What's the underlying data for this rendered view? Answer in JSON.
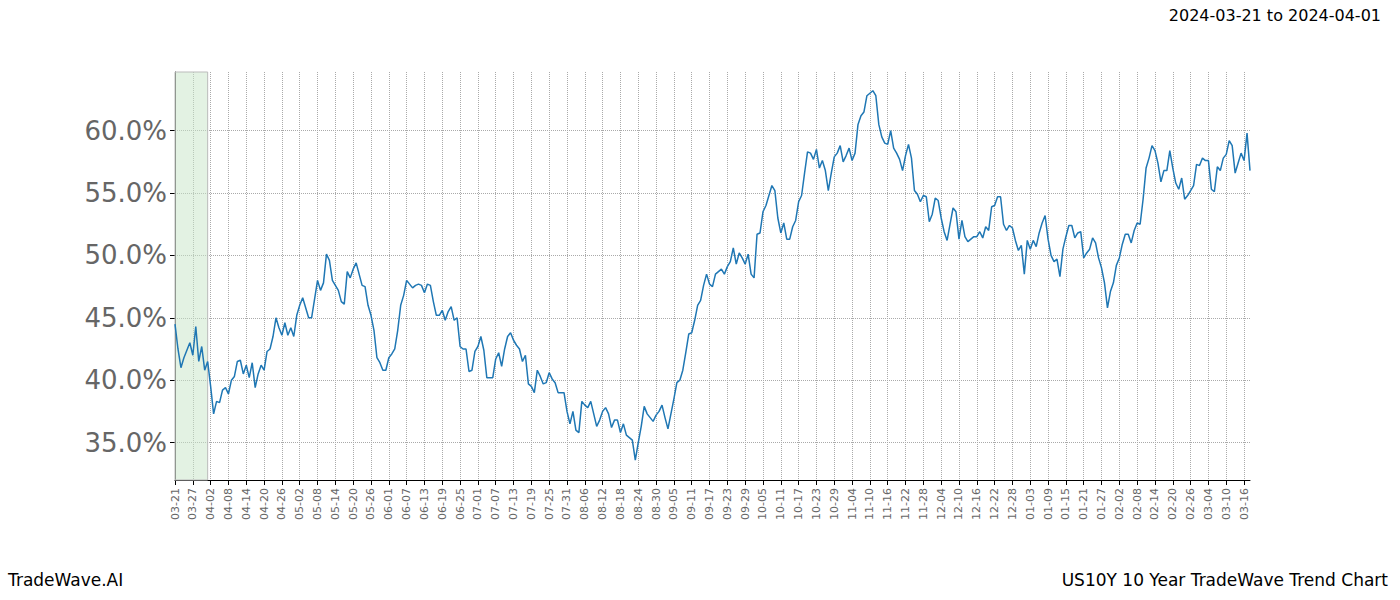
{
  "chart_data": {
    "type": "line",
    "title": "2024-03-21 to 2024-04-01",
    "source": "TradeWave.AI",
    "caption": "US10Y 10 Year TradeWave Trend Chart",
    "categories": [
      "03-21",
      null,
      null,
      null,
      null,
      null,
      "03-27",
      null,
      null,
      null,
      null,
      null,
      "04-02",
      null,
      null,
      null,
      null,
      null,
      "04-08",
      null,
      null,
      null,
      null,
      null,
      "04-14",
      null,
      null,
      null,
      null,
      null,
      "04-20",
      null,
      null,
      null,
      null,
      null,
      "04-26",
      null,
      null,
      null,
      null,
      null,
      "05-02",
      null,
      null,
      null,
      null,
      null,
      "05-08",
      null,
      null,
      null,
      null,
      null,
      "05-14",
      null,
      null,
      null,
      null,
      null,
      "05-20",
      null,
      null,
      null,
      null,
      null,
      "05-26",
      null,
      null,
      null,
      null,
      null,
      "06-01",
      null,
      null,
      null,
      null,
      null,
      "06-07",
      null,
      null,
      null,
      null,
      null,
      "06-13",
      null,
      null,
      null,
      null,
      null,
      "06-19",
      null,
      null,
      null,
      null,
      null,
      "06-25",
      null,
      null,
      null,
      null,
      null,
      "07-01",
      null,
      null,
      null,
      null,
      null,
      "07-07",
      null,
      null,
      null,
      null,
      null,
      "07-13",
      null,
      null,
      null,
      null,
      null,
      "07-19",
      null,
      null,
      null,
      null,
      null,
      "07-25",
      null,
      null,
      null,
      null,
      null,
      "07-31",
      null,
      null,
      null,
      null,
      null,
      "08-06",
      null,
      null,
      null,
      null,
      null,
      "08-12",
      null,
      null,
      null,
      null,
      null,
      "08-18",
      null,
      null,
      null,
      null,
      null,
      "08-24",
      null,
      null,
      null,
      null,
      null,
      "08-30",
      null,
      null,
      null,
      null,
      null,
      "09-05",
      null,
      null,
      null,
      null,
      null,
      "09-11",
      null,
      null,
      null,
      null,
      null,
      "09-17",
      null,
      null,
      null,
      null,
      null,
      "09-23",
      null,
      null,
      null,
      null,
      null,
      "09-29",
      null,
      null,
      null,
      null,
      null,
      "10-05",
      null,
      null,
      null,
      null,
      null,
      "10-11",
      null,
      null,
      null,
      null,
      null,
      "10-17",
      null,
      null,
      null,
      null,
      null,
      "10-23",
      null,
      null,
      null,
      null,
      null,
      "10-29",
      null,
      null,
      null,
      null,
      null,
      "11-04",
      null,
      null,
      null,
      null,
      null,
      "11-10",
      null,
      null,
      null,
      null,
      null,
      "11-16",
      null,
      null,
      null,
      null,
      null,
      "11-22",
      null,
      null,
      null,
      null,
      null,
      "11-28",
      null,
      null,
      null,
      null,
      null,
      "12-04",
      null,
      null,
      null,
      null,
      null,
      "12-10",
      null,
      null,
      null,
      null,
      null,
      "12-16",
      null,
      null,
      null,
      null,
      null,
      "12-22",
      null,
      null,
      null,
      null,
      null,
      "12-28",
      null,
      null,
      null,
      null,
      null,
      "01-03",
      null,
      null,
      null,
      null,
      null,
      "01-09",
      null,
      null,
      null,
      null,
      null,
      "01-15",
      null,
      null,
      null,
      null,
      null,
      "01-21",
      null,
      null,
      null,
      null,
      null,
      "01-27",
      null,
      null,
      null,
      null,
      null,
      "02-02",
      null,
      null,
      null,
      null,
      null,
      "02-08",
      null,
      null,
      null,
      null,
      null,
      "02-14",
      null,
      null,
      null,
      null,
      null,
      "02-20",
      null,
      null,
      null,
      null,
      null,
      "02-26",
      null,
      null,
      null,
      null,
      null,
      "03-04",
      null,
      null,
      null,
      null,
      null,
      "03-10",
      null,
      null,
      null,
      null,
      null,
      "03-16",
      null,
      null
    ],
    "values": [
      44.5,
      42.5,
      41,
      41.8,
      42.4,
      43,
      42,
      44.3,
      41.5,
      42.7,
      40.8,
      41.5,
      39.5,
      37.3,
      38.3,
      38.2,
      39.2,
      39.4,
      38.9,
      40,
      40.3,
      41.5,
      41.6,
      40.5,
      41.2,
      40.2,
      41.4,
      39.4,
      40.5,
      41.2,
      40.8,
      42.3,
      42.5,
      43.5,
      45,
      44.2,
      43.6,
      44.6,
      43.6,
      44.2,
      43.5,
      45.2,
      46,
      46.6,
      45.8,
      45,
      45,
      46.5,
      48,
      47.2,
      47.8,
      50.1,
      49.6,
      48,
      47.6,
      47.2,
      46.3,
      46.1,
      48.7,
      48.2,
      48.9,
      49.4,
      48.5,
      47.6,
      47.5,
      46,
      45.2,
      44,
      41.8,
      41.4,
      40.8,
      40.8,
      41.8,
      42.1,
      42.5,
      44,
      46,
      46.8,
      48,
      47.7,
      47.4,
      47.6,
      47.7,
      47.6,
      47,
      47.7,
      47.6,
      46.3,
      45.2,
      45.2,
      45.6,
      44.8,
      45.5,
      45.9,
      44.8,
      45,
      42.7,
      42.5,
      42.5,
      40.7,
      40.8,
      42.3,
      42.7,
      43.5,
      42.4,
      40.2,
      40.2,
      40.2,
      41.7,
      42.2,
      41.1,
      42.5,
      43.5,
      43.8,
      43.2,
      42.8,
      42.5,
      41.5,
      42,
      39.7,
      39.5,
      39,
      40.8,
      40.3,
      39.7,
      39.8,
      40.6,
      40.1,
      39.8,
      39,
      39,
      39,
      37.5,
      36.5,
      37.5,
      36,
      35.8,
      38.3,
      38,
      37.8,
      38.3,
      37.3,
      36.3,
      36.8,
      37.5,
      37.8,
      37.3,
      36.2,
      36.8,
      36.8,
      35.8,
      36.5,
      35.6,
      35.4,
      35.2,
      33.6,
      35,
      36.3,
      37.9,
      37.3,
      37,
      36.7,
      37.2,
      37.5,
      38,
      37,
      36.1,
      37.3,
      38.5,
      39.8,
      40,
      40.8,
      42.2,
      43.7,
      43.8,
      44.8,
      46,
      46.4,
      47.6,
      48.5,
      47.7,
      47.5,
      48.5,
      48.7,
      48.9,
      48.5,
      49.1,
      49.5,
      50.6,
      49.3,
      50.2,
      49.8,
      49.3,
      50.1,
      48.5,
      48.2,
      51.7,
      51.8,
      53.5,
      54,
      54.8,
      55.6,
      55.2,
      53,
      51.8,
      52.6,
      51.3,
      51.3,
      52.3,
      52.8,
      54.3,
      54.8,
      56.6,
      58.3,
      58.2,
      57.7,
      58.5,
      57,
      57.6,
      56.8,
      55.2,
      56.6,
      57.9,
      58.2,
      58.8,
      57.5,
      58,
      58.6,
      57.6,
      58.2,
      60.5,
      61.2,
      61.5,
      62.8,
      63,
      63.2,
      62.8,
      60.5,
      59.5,
      59,
      58.9,
      60,
      58.6,
      58.2,
      57.7,
      56.8,
      58,
      58.9,
      57.8,
      55.2,
      54.9,
      54.3,
      54.8,
      54.7,
      52.7,
      53.3,
      54.6,
      54.4,
      53,
      51.9,
      51.2,
      52.5,
      53.8,
      53.5,
      51.3,
      52.8,
      51.5,
      51.1,
      51.3,
      51.5,
      51.5,
      51.9,
      51.4,
      52.3,
      52,
      53.9,
      54,
      54.7,
      54.7,
      52.5,
      52,
      52.4,
      52.2,
      51.2,
      50.4,
      50.8,
      48.5,
      51.2,
      50.5,
      51.2,
      50.7,
      51.8,
      52.6,
      53.2,
      51.3,
      50,
      49.5,
      49.7,
      48.3,
      50.5,
      51.5,
      52.4,
      52.4,
      51.4,
      51.8,
      51.9,
      49.8,
      50.2,
      50.5,
      51.4,
      51,
      49.8,
      49,
      47.8,
      45.8,
      47.1,
      47.8,
      49.2,
      49.8,
      50.9,
      51.7,
      51.7,
      51,
      52,
      52.6,
      52.5,
      54.5,
      57,
      57.8,
      58.8,
      58.4,
      57.4,
      55.9,
      56.8,
      56.8,
      58.4,
      57,
      55.8,
      55.3,
      56.2,
      54.5,
      54.8,
      55.2,
      55.6,
      57.3,
      57.2,
      57.8,
      57.6,
      57.6,
      55.3,
      55.1,
      57.1,
      56.8,
      57.8,
      58.1,
      59.2,
      58.8,
      56.6,
      57.4,
      58.2,
      57.6,
      59.8,
      56.8
    ],
    "color": "#1f77b4",
    "highlight": [
      0,
      11
    ],
    "ylim": [
      32,
      64.7
    ],
    "yticks": [
      {
        "value": 35,
        "label": "35.0%"
      },
      {
        "value": 40,
        "label": "40.0%"
      },
      {
        "value": 45,
        "label": "45.0%"
      },
      {
        "value": 50,
        "label": "50.0%"
      },
      {
        "value": 55,
        "label": "55.0%"
      },
      {
        "value": 60,
        "label": "60.0%"
      }
    ],
    "grid": true
  }
}
